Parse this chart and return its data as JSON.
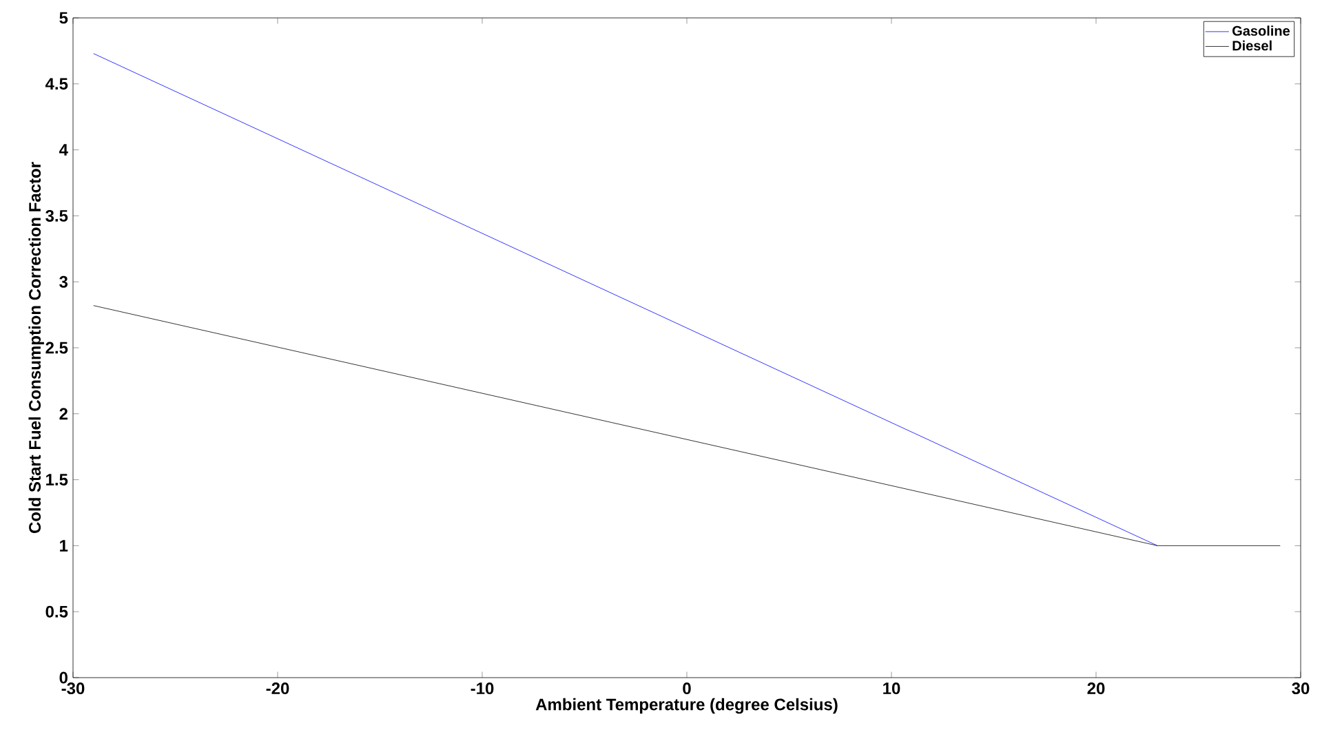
{
  "chart_data": {
    "type": "line",
    "xlabel": "Ambient Temperature (degree Celsius)",
    "ylabel": "Cold Start Fuel Consumption Correction Factor",
    "series": [
      {
        "name": "Gasoline",
        "color": "#0000ff",
        "x": [
          -29,
          23
        ],
        "values": [
          4.73,
          1
        ]
      },
      {
        "name": "Diesel",
        "color": "#000000",
        "x": [
          -29,
          23,
          29
        ],
        "values": [
          2.82,
          1,
          1
        ]
      }
    ],
    "xlim": [
      -30,
      30
    ],
    "xticks": [
      -30,
      -20,
      -10,
      0,
      10,
      20,
      30
    ],
    "ylim": [
      0,
      5
    ],
    "yticks": [
      0,
      0.5,
      1,
      1.5,
      2,
      2.5,
      3,
      3.5,
      4,
      4.5,
      5
    ],
    "legend": "top right",
    "grid": false,
    "marker": "none",
    "line_style": "solid"
  }
}
